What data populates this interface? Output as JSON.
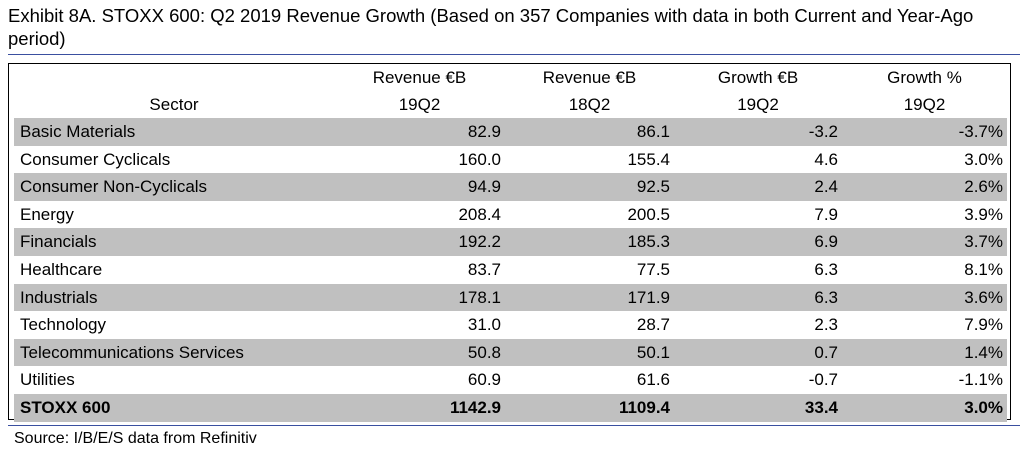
{
  "title": "Exhibit 8A.  STOXX 600: Q2 2019 Revenue Growth (Based on 357 Companies with data in both Current and Year-Ago period)",
  "table": {
    "headers": {
      "sector": "Sector",
      "col1_line1": "Revenue €B",
      "col1_line2": "19Q2",
      "col2_line1": "Revenue €B",
      "col2_line2": "18Q2",
      "col3_line1": "Growth €B",
      "col3_line2": "19Q2",
      "col4_line1": "Growth %",
      "col4_line2": "19Q2"
    },
    "rows": [
      {
        "sector": "Basic Materials",
        "rev19": "82.9",
        "rev18": "86.1",
        "growth_eur": "-3.2",
        "growth_pct": "-3.7%"
      },
      {
        "sector": "Consumer Cyclicals",
        "rev19": "160.0",
        "rev18": "155.4",
        "growth_eur": "4.6",
        "growth_pct": "3.0%"
      },
      {
        "sector": "Consumer Non-Cyclicals",
        "rev19": "94.9",
        "rev18": "92.5",
        "growth_eur": "2.4",
        "growth_pct": "2.6%"
      },
      {
        "sector": "Energy",
        "rev19": "208.4",
        "rev18": "200.5",
        "growth_eur": "7.9",
        "growth_pct": "3.9%"
      },
      {
        "sector": "Financials",
        "rev19": "192.2",
        "rev18": "185.3",
        "growth_eur": "6.9",
        "growth_pct": "3.7%"
      },
      {
        "sector": "Healthcare",
        "rev19": "83.7",
        "rev18": "77.5",
        "growth_eur": "6.3",
        "growth_pct": "8.1%"
      },
      {
        "sector": "Industrials",
        "rev19": "178.1",
        "rev18": "171.9",
        "growth_eur": "6.3",
        "growth_pct": "3.6%"
      },
      {
        "sector": "Technology",
        "rev19": "31.0",
        "rev18": "28.7",
        "growth_eur": "2.3",
        "growth_pct": "7.9%"
      },
      {
        "sector": "Telecommunications Services",
        "rev19": "50.8",
        "rev18": "50.1",
        "growth_eur": "0.7",
        "growth_pct": "1.4%"
      },
      {
        "sector": "Utilities",
        "rev19": "60.9",
        "rev18": "61.6",
        "growth_eur": "-0.7",
        "growth_pct": "-1.1%"
      }
    ],
    "total": {
      "sector": "STOXX 600",
      "rev19": "1142.9",
      "rev18": "1109.4",
      "growth_eur": "33.4",
      "growth_pct": "3.0%"
    }
  },
  "source": "Source: I/B/E/S data from Refinitiv",
  "colors": {
    "rule": "#3a4fa0",
    "row_shade": "#c0c0c0"
  }
}
